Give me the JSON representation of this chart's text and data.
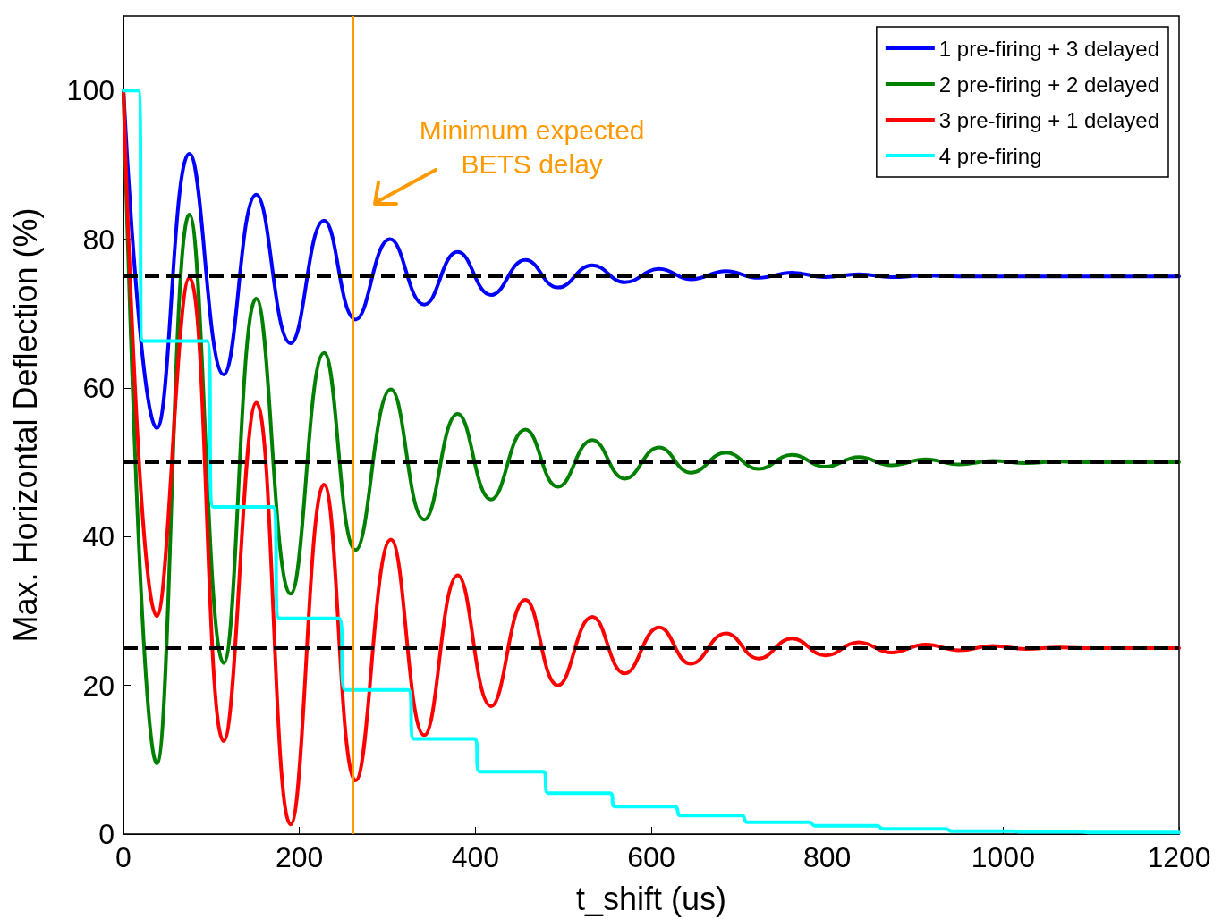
{
  "chart_data": {
    "type": "line",
    "xlabel": "t_shift (us)",
    "ylabel": "Max. Horizontal Deflection (%)",
    "xlim": [
      0,
      1200
    ],
    "xticks": [
      0,
      200,
      400,
      600,
      800,
      1000,
      1200
    ],
    "ylim": [
      0,
      110
    ],
    "yticks": [
      0,
      20,
      40,
      60,
      80,
      100
    ],
    "grid": false,
    "legend": "top right",
    "marker": "none",
    "line_style": "solid",
    "series": [
      {
        "name": "1 pre-firing + 3 delayed",
        "color": "#0000ff",
        "x": [
          0,
          38,
          75,
          114,
          151,
          190,
          228,
          264,
          303,
          342,
          380,
          418,
          457,
          494,
          533,
          570,
          609,
          645,
          685,
          722,
          760,
          798,
          836,
          873,
          912,
          950,
          1000,
          1200
        ],
        "values": [
          100,
          54.6,
          91.5,
          61.8,
          86,
          66,
          82.5,
          69.2,
          80,
          71.2,
          78.3,
          72.5,
          77.2,
          73.5,
          76.5,
          74.2,
          76,
          74.6,
          75.7,
          74.8,
          75.5,
          74.9,
          75.3,
          74.9,
          75.1,
          75,
          75,
          75
        ]
      },
      {
        "name": "2 pre-firing + 2 delayed",
        "color": "#008000",
        "x": [
          0,
          38,
          75,
          114,
          151,
          190,
          228,
          264,
          304,
          342,
          380,
          418,
          457,
          494,
          533,
          570,
          609,
          645,
          685,
          722,
          760,
          798,
          836,
          873,
          912,
          950,
          988,
          1026,
          1064,
          1100,
          1200
        ],
        "values": [
          100,
          9.5,
          83.3,
          23,
          72,
          32.3,
          64.7,
          38.2,
          59.8,
          42.3,
          56.5,
          45,
          54.4,
          46.7,
          53,
          47.8,
          52,
          48.6,
          51.3,
          49.1,
          51,
          49.4,
          50.7,
          49.6,
          50.4,
          49.7,
          50.2,
          49.9,
          50.1,
          50,
          50
        ]
      },
      {
        "name": "3 pre-firing + 1 delayed",
        "color": "#ff0000",
        "x": [
          0,
          38,
          75,
          114,
          151,
          190,
          228,
          264,
          304,
          342,
          380,
          418,
          457,
          494,
          533,
          570,
          609,
          645,
          685,
          722,
          760,
          798,
          836,
          873,
          912,
          950,
          988,
          1026,
          1064,
          1100,
          1200
        ],
        "values": [
          100,
          29.3,
          74.8,
          12.5,
          58,
          1.3,
          47,
          7.2,
          39.6,
          13.3,
          34.8,
          17.2,
          31.5,
          20,
          29.2,
          21.6,
          27.8,
          22.9,
          27,
          23.6,
          26.3,
          24,
          25.8,
          24.4,
          25.5,
          24.7,
          25.3,
          24.9,
          25.1,
          25,
          25
        ]
      },
      {
        "name": "4 pre-firing",
        "color": "#00ffff",
        "x": [
          0,
          17,
          22,
          95,
          102,
          170,
          177,
          245,
          252,
          324,
          330,
          399,
          405,
          477,
          483,
          553,
          559,
          627,
          633,
          703,
          709,
          780,
          786,
          857,
          863,
          935,
          941,
          1012,
          1018,
          1090,
          1096,
          1200
        ],
        "values": [
          100,
          100,
          66.3,
          66.3,
          44,
          44,
          29,
          29,
          19.4,
          19.4,
          12.8,
          12.8,
          8.4,
          8.4,
          5.5,
          5.5,
          3.7,
          3.7,
          2.5,
          2.5,
          1.6,
          1.6,
          1.1,
          1.1,
          0.7,
          0.7,
          0.4,
          0.4,
          0.3,
          0.3,
          0.2,
          0.2
        ]
      }
    ],
    "ref_lines": [
      {
        "axis": "y",
        "value": 75,
        "color": "#000000",
        "line_style": "dashed"
      },
      {
        "axis": "y",
        "value": 50,
        "color": "#000000",
        "line_style": "dashed"
      },
      {
        "axis": "y",
        "value": 25,
        "color": "#000000",
        "line_style": "dashed"
      },
      {
        "axis": "x",
        "value": 261,
        "color": "#ff9900",
        "line_style": "solid",
        "label": "Minimum expected\nBETS delay"
      }
    ]
  }
}
